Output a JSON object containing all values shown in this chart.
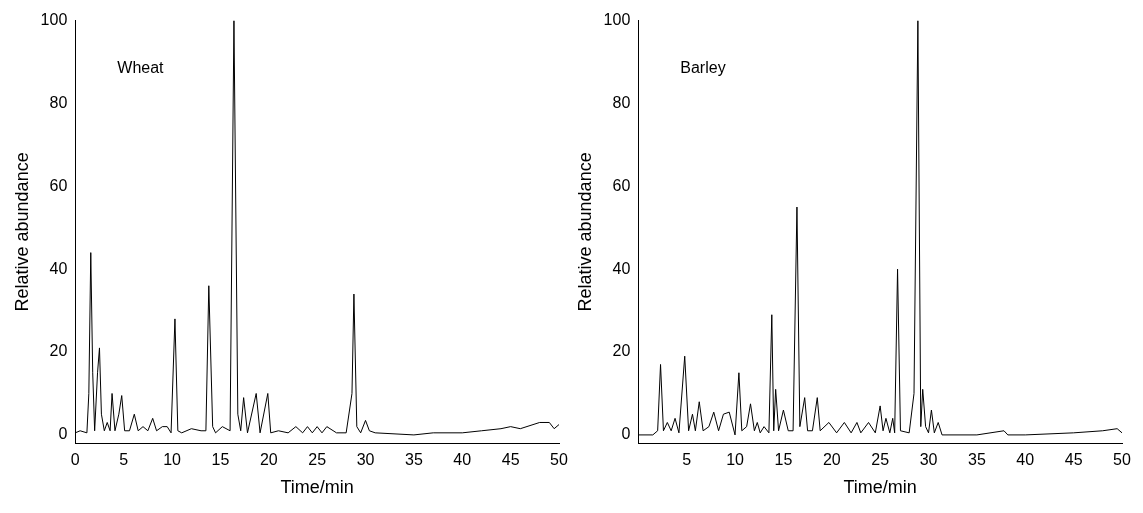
{
  "chart_data": [
    {
      "type": "line",
      "annotations": [
        "Wheat"
      ],
      "xlabel": "Time/min",
      "ylabel": "Relative abundance",
      "xlim": [
        0,
        50
      ],
      "ylim": [
        -2,
        100
      ],
      "xticks": [
        0,
        5,
        10,
        15,
        20,
        25,
        30,
        35,
        40,
        45,
        50
      ],
      "yticks": [
        0,
        20,
        40,
        60,
        80,
        100
      ],
      "series": [
        {
          "color": "#000000",
          "x": [
            0,
            0.5,
            1.2,
            1.4,
            1.6,
            1.8,
            2.0,
            2.3,
            2.5,
            2.7,
            3.0,
            3.3,
            3.6,
            3.8,
            4.1,
            4.5,
            4.8,
            5.1,
            5.6,
            6.1,
            6.5,
            7.0,
            7.5,
            8.0,
            8.4,
            9.0,
            9.5,
            9.9,
            10.3,
            10.6,
            11,
            12,
            13,
            13.5,
            13.8,
            14.2,
            14.5,
            15.2,
            16.0,
            16.4,
            16.8,
            17.1,
            17.4,
            17.8,
            18.7,
            19.1,
            19.9,
            20.2,
            21,
            22,
            22.8,
            23.5,
            24,
            24.5,
            25,
            25.5,
            26,
            27,
            28.0,
            28.6,
            28.8,
            29.1,
            29.5,
            30,
            30.4,
            31,
            35,
            37,
            40,
            42,
            44,
            45,
            46,
            48,
            49,
            49.5,
            50
          ],
          "values": [
            0.5,
            1,
            0.5,
            10,
            44,
            15,
            1,
            15,
            21,
            5,
            1,
            3,
            1,
            10,
            1,
            5,
            9.5,
            1,
            1,
            5,
            1,
            2,
            1,
            4,
            1,
            2,
            2,
            0.5,
            28,
            1,
            0.5,
            1.5,
            1,
            1,
            36,
            2,
            0.5,
            2,
            1,
            100,
            5,
            1,
            9,
            0.5,
            10,
            0.5,
            10,
            0.5,
            1,
            0.5,
            2,
            0.5,
            2,
            0.5,
            2,
            0.5,
            2,
            0.5,
            0.5,
            10,
            34,
            2,
            0.5,
            3.5,
            1,
            0.5,
            0,
            0.5,
            0.5,
            1,
            1.5,
            2,
            1.5,
            3,
            3,
            1.5,
            2.5
          ]
        }
      ]
    },
    {
      "type": "line",
      "annotations": [
        "Barley"
      ],
      "xlabel": "Time/min",
      "ylabel": "Relative abundance",
      "xlim": [
        0,
        50
      ],
      "ylim": [
        -2,
        100
      ],
      "xticks": [
        5,
        10,
        15,
        20,
        25,
        30,
        35,
        40,
        45,
        50
      ],
      "yticks": [
        0,
        20,
        40,
        60,
        80,
        100
      ],
      "series": [
        {
          "color": "#000000",
          "x": [
            0,
            1.5,
            2.0,
            2.3,
            2.6,
            3,
            3.4,
            3.8,
            4.2,
            4.8,
            5.2,
            5.6,
            5.9,
            6.3,
            6.7,
            7.3,
            7.8,
            8.3,
            8.8,
            9.4,
            10.0,
            10.4,
            10.7,
            11.2,
            11.6,
            12.0,
            12.3,
            12.6,
            13,
            13.5,
            13.8,
            14.0,
            14.2,
            14.5,
            15.0,
            15.5,
            16.0,
            16.4,
            16.7,
            17.2,
            17.5,
            18,
            18.5,
            18.8,
            19.7,
            20.5,
            21.3,
            22,
            22.6,
            23,
            23.8,
            24.5,
            25,
            25.3,
            25.6,
            26,
            26.3,
            26.5,
            26.8,
            27.1,
            28.0,
            28.5,
            28.9,
            29.2,
            29.4,
            29.7,
            30.0,
            30.3,
            30.6,
            31.0,
            31.4,
            35,
            37.8,
            38.2,
            40,
            45,
            48,
            49.5,
            50
          ],
          "values": [
            0,
            0,
            1,
            17,
            1,
            3,
            1,
            4,
            0.5,
            19,
            1,
            5,
            1,
            8,
            1,
            2,
            5.5,
            1,
            5,
            5.5,
            0,
            15,
            1,
            2,
            7.5,
            1,
            3,
            0.5,
            2,
            0.5,
            29,
            1,
            11,
            1,
            6,
            1,
            1,
            55,
            2,
            9,
            1,
            1,
            9,
            1,
            3,
            0.5,
            3,
            0.5,
            3,
            0.5,
            3,
            0.5,
            7,
            1,
            4,
            0.5,
            4,
            0.5,
            40,
            1,
            0.5,
            10,
            100,
            2,
            11,
            2,
            0.5,
            6,
            0.5,
            3,
            0,
            0,
            1,
            0,
            0,
            0.5,
            1,
            1.5,
            0.5
          ]
        }
      ]
    }
  ]
}
